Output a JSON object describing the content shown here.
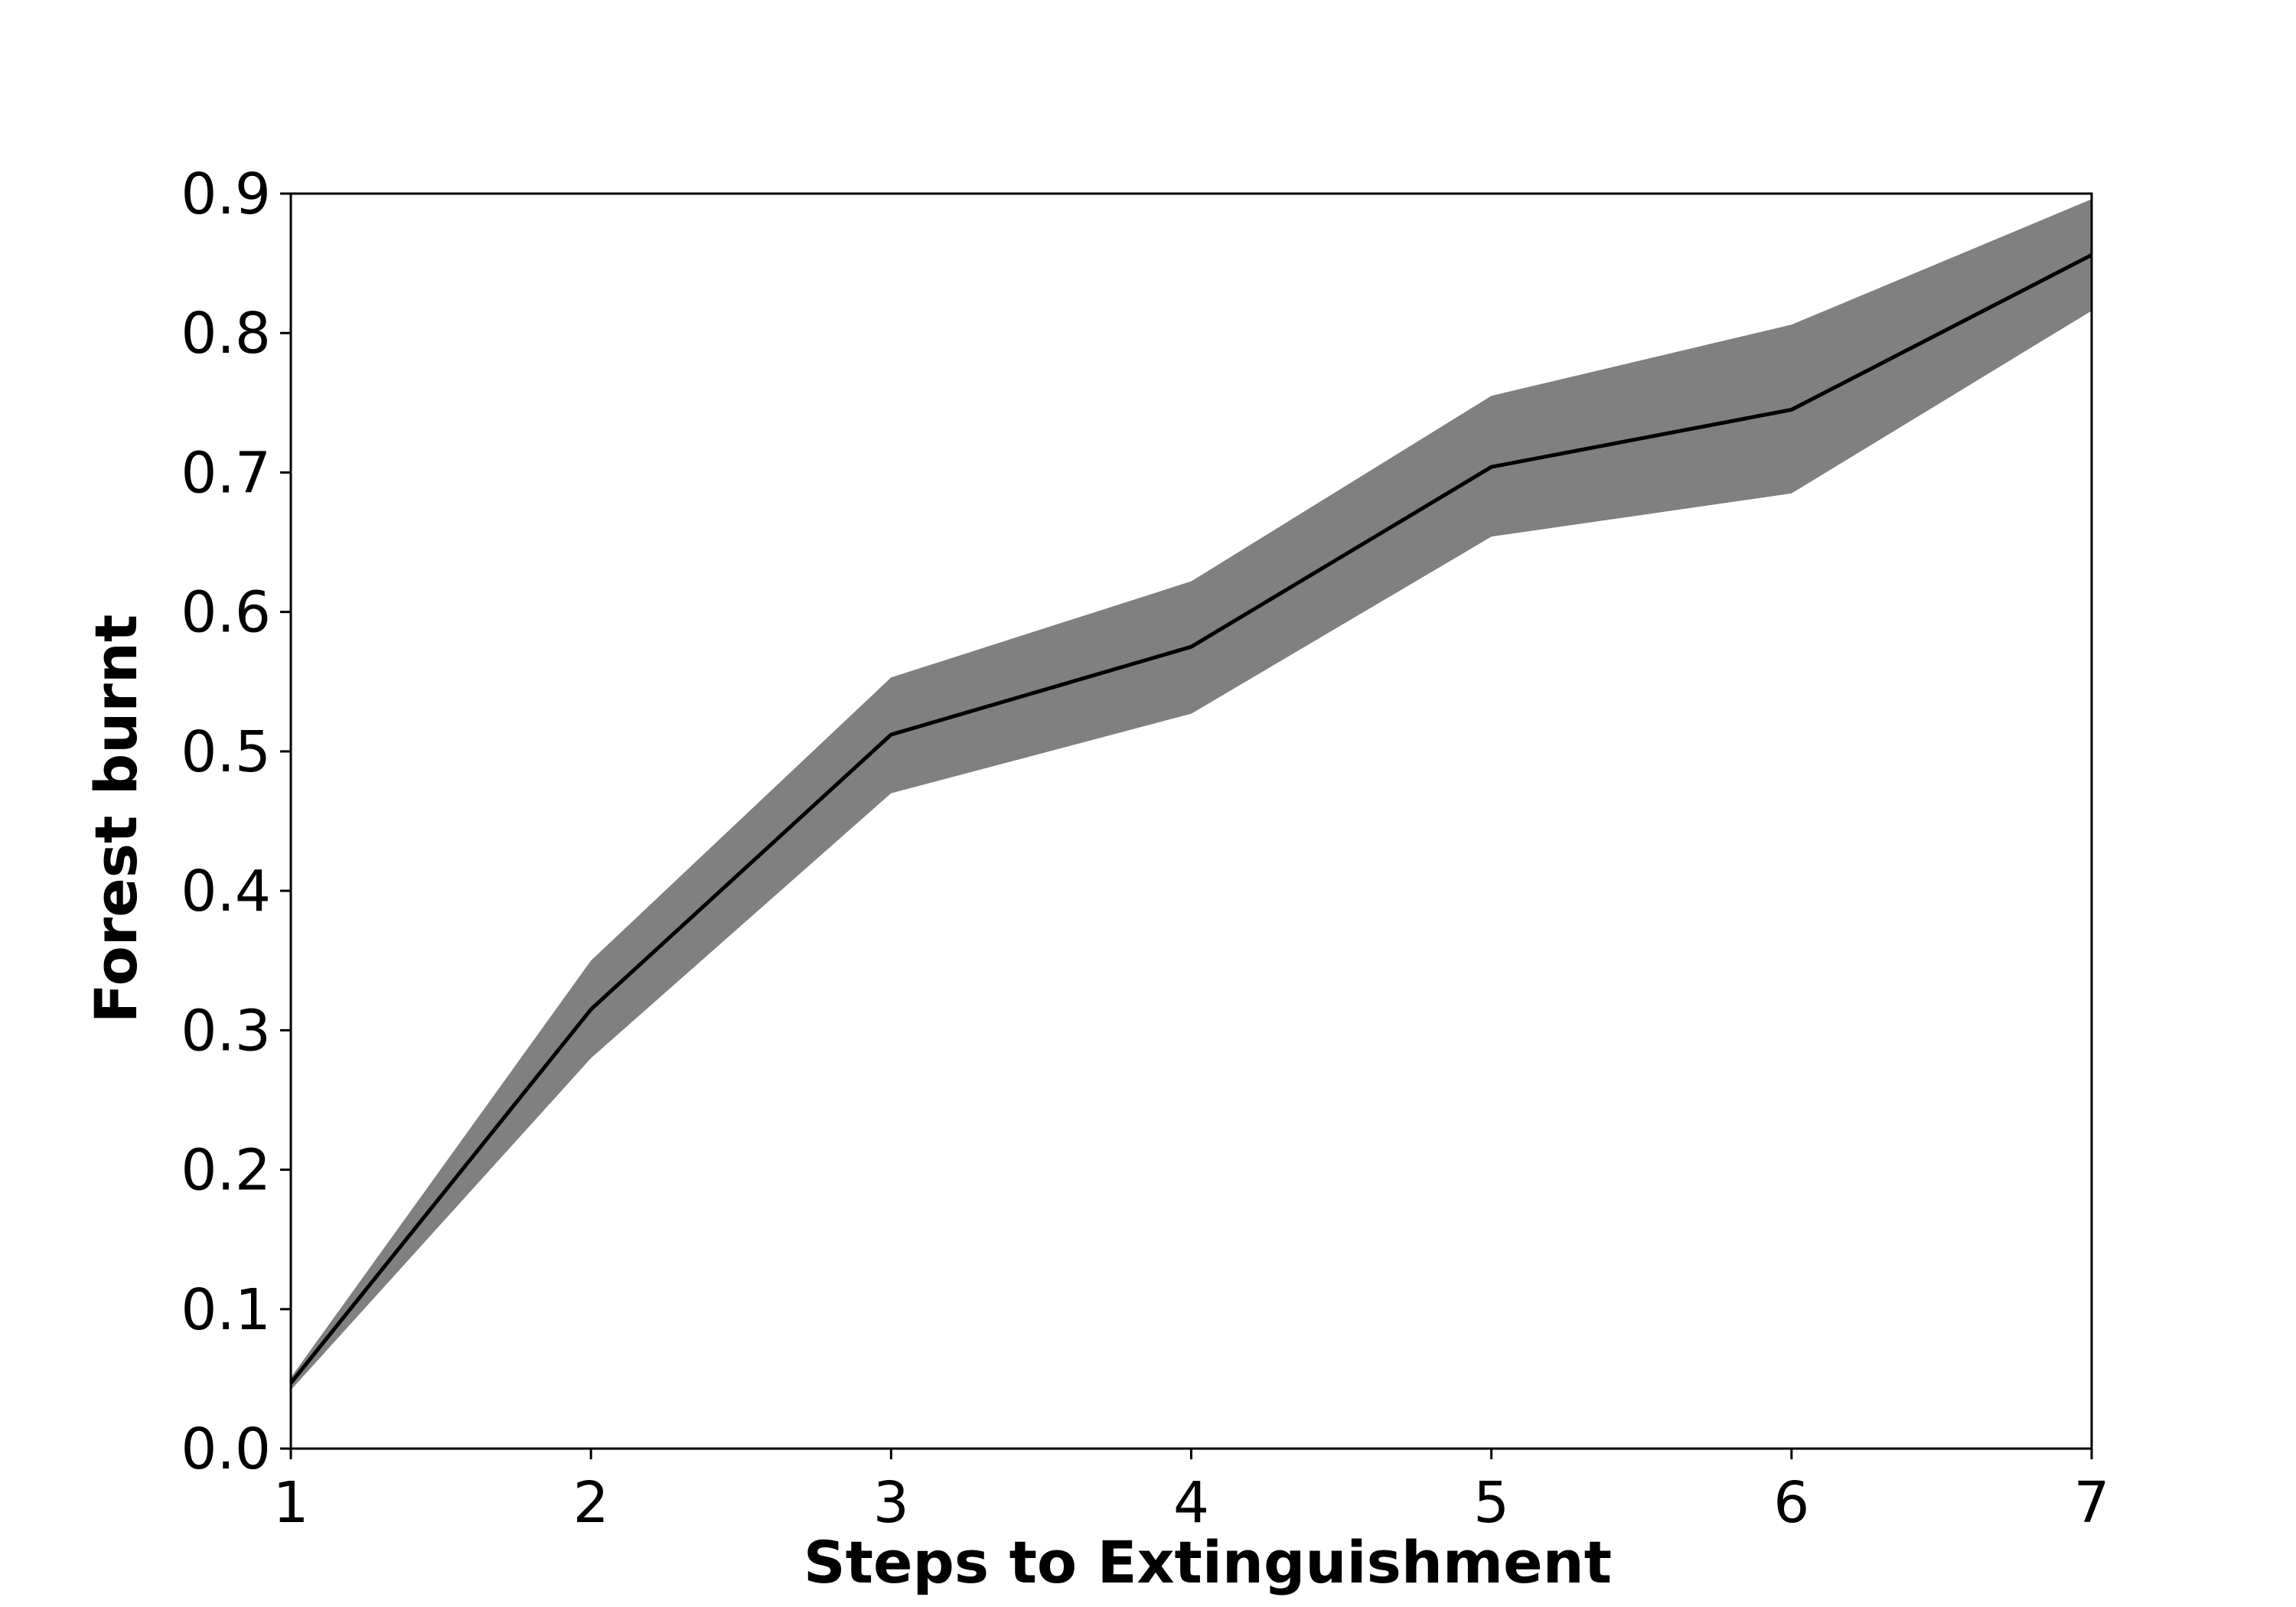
{
  "chart_data": {
    "type": "line",
    "title": "",
    "xlabel": "Steps to Extinguishment",
    "ylabel": "Forest burnt",
    "xlim": [
      1,
      7
    ],
    "ylim": [
      0.0,
      0.9
    ],
    "x_ticks": [
      "1",
      "2",
      "3",
      "4",
      "5",
      "6",
      "7"
    ],
    "y_ticks": [
      "0.0",
      "0.1",
      "0.2",
      "0.3",
      "0.4",
      "0.5",
      "0.6",
      "0.7",
      "0.8",
      "0.9"
    ],
    "grid": false,
    "legend": "none",
    "series": [
      {
        "x": [
          1,
          2,
          3,
          4,
          5,
          6,
          7
        ],
        "values": [
          0.047,
          0.315,
          0.512,
          0.575,
          0.704,
          0.745,
          0.856
        ],
        "upper": [
          0.051,
          0.35,
          0.553,
          0.622,
          0.755,
          0.806,
          0.896
        ],
        "lower": [
          0.042,
          0.28,
          0.47,
          0.527,
          0.654,
          0.685,
          0.816
        ],
        "line_color": "#000000",
        "band_color": "#808080"
      }
    ]
  }
}
